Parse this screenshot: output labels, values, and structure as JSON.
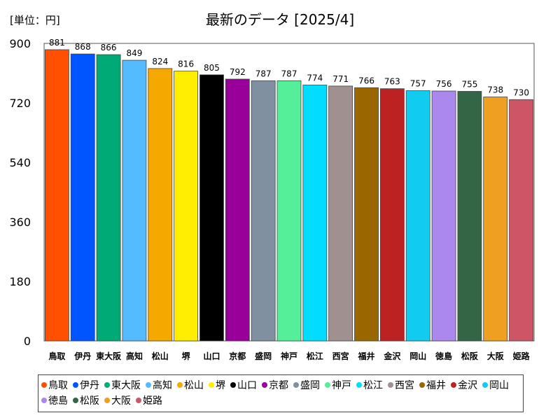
{
  "chart_data": {
    "type": "bar",
    "title": "最新のデータ [2025/4]",
    "unit_label": "[単位：円]",
    "xlabel": "",
    "ylabel": "",
    "ylim": [
      0,
      900
    ],
    "yticks": [
      0,
      180,
      360,
      540,
      720,
      900
    ],
    "grid": false,
    "legend_position": "bottom",
    "categories": [
      "鳥取",
      "伊丹",
      "東大阪",
      "高知",
      "松山",
      "堺",
      "山口",
      "京都",
      "盛岡",
      "神戸",
      "松江",
      "西宮",
      "福井",
      "金沢",
      "岡山",
      "徳島",
      "松阪",
      "大阪",
      "姫路"
    ],
    "values": [
      881,
      868,
      866,
      849,
      824,
      816,
      805,
      792,
      787,
      787,
      774,
      771,
      766,
      763,
      757,
      756,
      755,
      738,
      730
    ],
    "colors": [
      "#ff5000",
      "#0055ff",
      "#00aa77",
      "#55bbff",
      "#f5a800",
      "#ffee00",
      "#000000",
      "#990099",
      "#8090a0",
      "#55ee99",
      "#00ddff",
      "#a09090",
      "#996600",
      "#bb2222",
      "#11ccee",
      "#aa88ee",
      "#336644",
      "#f0a020",
      "#cc5566"
    ]
  }
}
